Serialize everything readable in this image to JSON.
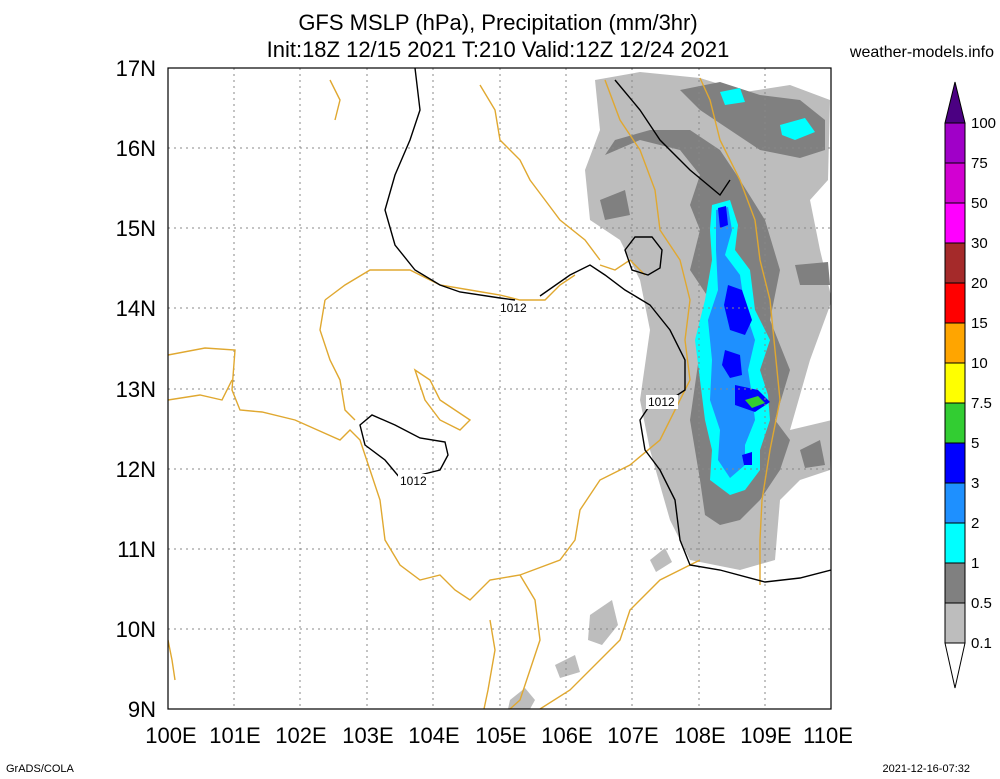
{
  "title_line1": "GFS MSLP (hPa), Precipitation (mm/3hr)",
  "title_line2": "Init:18Z 12/15 2021 T:210 Valid:12Z 12/24 2021",
  "site": "weather-models.info",
  "footer_left": "GrADS/COLA",
  "footer_right": "2021-12-16-07:32",
  "lat_labels": [
    "17N",
    "16N",
    "15N",
    "14N",
    "13N",
    "12N",
    "11N",
    "10N",
    "9N"
  ],
  "lon_labels": [
    "100E",
    "101E",
    "102E",
    "103E",
    "104E",
    "105E",
    "106E",
    "107E",
    "108E",
    "109E",
    "110E"
  ],
  "isobar_labels": [
    "1012",
    "1012",
    "1012"
  ],
  "colorbar": {
    "labels": [
      "100",
      "75",
      "50",
      "30",
      "20",
      "15",
      "10",
      "7.5",
      "5",
      "3",
      "2",
      "1",
      "0.5",
      "0.1"
    ],
    "colors": [
      "#a000c8",
      "#d200d2",
      "#ff00ff",
      "#a52a2a",
      "#ff0000",
      "#ffa500",
      "#ffff00",
      "#32cd32",
      "#0000ff",
      "#1e90ff",
      "#00ffff",
      "#808080",
      "#bdbdbd",
      "#ffffff"
    ]
  }
}
